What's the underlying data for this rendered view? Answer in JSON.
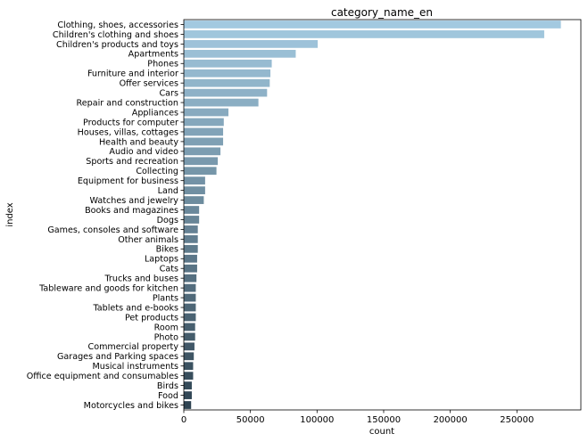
{
  "chart_data": {
    "type": "bar",
    "orientation": "horizontal",
    "title": "category_name_en",
    "xlabel": "count",
    "ylabel": "index",
    "xlim": [
      0,
      298000
    ],
    "xticks": [
      0,
      50000,
      100000,
      150000,
      200000,
      250000
    ],
    "xtick_labels": [
      "0",
      "50000",
      "100000",
      "150000",
      "200000",
      "250000"
    ],
    "grid": false,
    "legend": "none",
    "colormap": "Blues_d",
    "color_start": "#a3c9e0",
    "color_end": "#2f4452",
    "categories": [
      "Clothing, shoes, accessories",
      "Children's clothing and shoes",
      "Children's products and toys",
      "Apartments",
      "Phones",
      "Furniture and interior",
      "Offer services",
      "Cars",
      "Repair and construction",
      "Appliances",
      "Products for computer",
      "Houses, villas, cottages",
      "Health and beauty",
      "Audio and video",
      "Sports and recreation",
      "Collecting",
      "Equipment for business",
      "Land",
      "Watches and jewelry",
      "Books and magazines",
      "Dogs",
      "Games, consoles and software",
      "Other animals",
      "Bikes",
      "Laptops",
      "Cats",
      "Trucks and buses",
      "Tableware and goods for kitchen",
      "Plants",
      "Tablets and e-books",
      "Pet products",
      "Room",
      "Photo",
      "Commercial property",
      "Garages and Parking spaces",
      "Musical instruments",
      "Office equipment and consumables",
      "Birds",
      "Food",
      "Motorcycles and bikes"
    ],
    "values": [
      283000,
      270500,
      100500,
      84000,
      66000,
      65000,
      64500,
      62500,
      56000,
      33500,
      30000,
      29500,
      29500,
      27500,
      25500,
      24500,
      16000,
      16000,
      15000,
      11500,
      11500,
      10500,
      10500,
      10500,
      10000,
      10000,
      9500,
      9000,
      9000,
      9000,
      9000,
      8500,
      8500,
      8000,
      7500,
      7000,
      7000,
      6000,
      6000,
      5500
    ]
  }
}
